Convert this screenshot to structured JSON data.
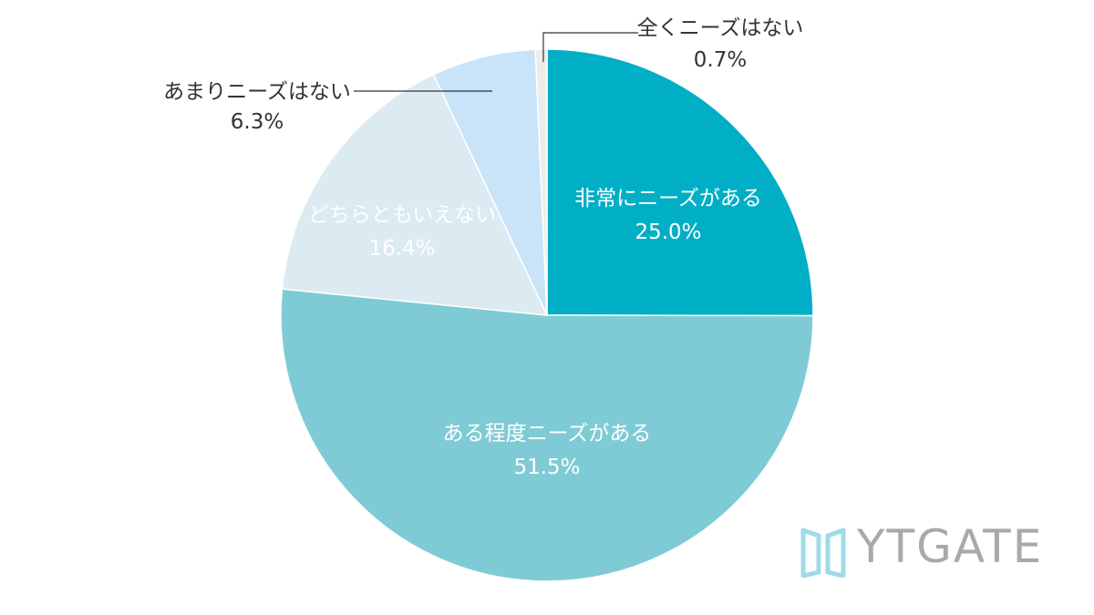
{
  "chart_data": {
    "type": "pie",
    "slices": [
      {
        "label": "非常にニーズがある",
        "value": 25.0,
        "value_label": "25.0%",
        "color": "#00aec6"
      },
      {
        "label": "ある程度ニーズがある",
        "value": 51.5,
        "value_label": "51.5%",
        "color": "#7ecbd5"
      },
      {
        "label": "どちらともいえない",
        "value": 16.4,
        "value_label": "16.4%",
        "color": "#dbebf1"
      },
      {
        "label": "あまりニーズはない",
        "value": 6.3,
        "value_label": "6.3%",
        "color": "#c9e4f8"
      },
      {
        "label": "全くニーズはない",
        "value": 0.7,
        "value_label": "0.7%",
        "color": "#ececec"
      }
    ],
    "start": "12 o'clock",
    "direction": "clockwise"
  },
  "logo": {
    "text": "YTGATE",
    "color": "#a9a9a9",
    "mark_color": "#9fdbe6"
  }
}
